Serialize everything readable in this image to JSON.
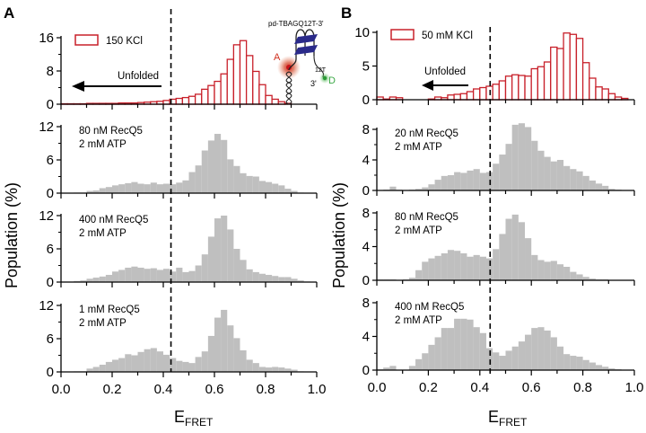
{
  "figure": {
    "panel_a_letter": "A",
    "panel_b_letter": "B",
    "ylabel": "Population (%)",
    "xlabel_main": "E",
    "xlabel_sub": "FRET",
    "unfolded_label": "Unfolded",
    "inset": {
      "construct": "pd-TBAGQ12T-3'",
      "acceptor": "A",
      "donor": "D",
      "linker": "12T",
      "three_prime": "3'"
    },
    "colors": {
      "open_bar": "#c8202a",
      "gray_bar": "#bfbfbf",
      "acceptor": "#d0301f",
      "donor": "#3aa845",
      "quadruplex": "#2a2a8a"
    }
  },
  "chart_data": [
    {
      "panel": "A",
      "type": "bar",
      "style": "open",
      "legend": "150 KCl",
      "annotation": "",
      "ylim": [
        0,
        16
      ],
      "yticks": [
        0,
        8,
        16
      ],
      "yminor": [
        4,
        12
      ],
      "xlim": [
        0,
        1
      ],
      "bin_width": 0.025,
      "threshold": 0.43,
      "values": [
        0.1,
        0.1,
        0.1,
        0.1,
        0.2,
        0.2,
        0.2,
        0.2,
        0.2,
        0.3,
        0.3,
        0.3,
        0.4,
        0.5,
        0.6,
        0.7,
        0.9,
        1.2,
        1.4,
        1.6,
        1.9,
        2.4,
        3.6,
        4.5,
        5.5,
        7.3,
        10.8,
        14.3,
        15.3,
        11.7,
        7.9,
        4.7,
        2.1,
        1.2,
        0.6,
        0.2,
        0,
        0,
        0,
        0
      ]
    },
    {
      "panel": "A",
      "type": "bar",
      "style": "filled",
      "annotation": [
        "80 nM RecQ5",
        "2 mM ATP"
      ],
      "ylim": [
        0,
        12
      ],
      "yticks": [
        0,
        6,
        12
      ],
      "yminor": [
        3,
        9
      ],
      "xlim": [
        0,
        1
      ],
      "bin_width": 0.025,
      "threshold": 0.43,
      "values": [
        0,
        0,
        0.1,
        0.1,
        0.4,
        0.5,
        0.9,
        1.1,
        1.4,
        1.6,
        1.8,
        2.0,
        1.7,
        1.6,
        1.9,
        1.6,
        1.7,
        1.6,
        1.9,
        2.3,
        3.8,
        5.0,
        7.7,
        9.5,
        10.7,
        9.6,
        6.1,
        4.9,
        3.6,
        3.1,
        3.0,
        2.2,
        2.0,
        1.7,
        1.4,
        0.8,
        0.4,
        0.1,
        0,
        0
      ]
    },
    {
      "panel": "A",
      "type": "bar",
      "style": "filled",
      "annotation": [
        "400 nM RecQ5",
        "2 mM ATP"
      ],
      "ylim": [
        0,
        12
      ],
      "yticks": [
        0,
        6,
        12
      ],
      "yminor": [
        3,
        9
      ],
      "xlim": [
        0,
        1
      ],
      "bin_width": 0.025,
      "threshold": 0.43,
      "values": [
        0.1,
        0.1,
        0.2,
        0.3,
        0.6,
        0.8,
        1.0,
        1.3,
        1.9,
        2.2,
        2.6,
        2.8,
        2.6,
        2.4,
        2.5,
        2.2,
        2.4,
        1.9,
        2.6,
        1.8,
        2.0,
        3.0,
        5.0,
        8.2,
        11.5,
        12.0,
        9.5,
        6.0,
        4.0,
        2.3,
        1.8,
        1.5,
        1.3,
        1.1,
        0.9,
        0.9,
        0.6,
        0.3,
        0.1,
        0
      ]
    },
    {
      "panel": "A",
      "type": "bar",
      "style": "filled",
      "annotation": [
        "1 mM RecQ5",
        "2 mM ATP"
      ],
      "ylim": [
        0,
        12
      ],
      "yticks": [
        0,
        6,
        12
      ],
      "yminor": [
        3,
        9
      ],
      "xlim": [
        0,
        1
      ],
      "bin_width": 0.025,
      "threshold": 0.43,
      "xticks": [
        0.0,
        0.2,
        0.4,
        0.6,
        0.8,
        1.0
      ],
      "values": [
        0,
        0,
        0.1,
        0.1,
        0.6,
        0.9,
        1.3,
        1.8,
        2.2,
        2.5,
        3.2,
        3.0,
        3.6,
        4.1,
        4.3,
        3.7,
        3.1,
        2.5,
        2.0,
        1.8,
        1.6,
        2.7,
        3.7,
        6.5,
        9.8,
        11.2,
        8.4,
        6.1,
        3.9,
        2.2,
        1.6,
        0.9,
        0.8,
        0.9,
        0.8,
        0.6,
        0.4,
        0.1,
        0,
        0
      ]
    },
    {
      "panel": "B",
      "type": "bar",
      "style": "open",
      "legend": "50 mM KCl",
      "annotation": "",
      "ylim": [
        0,
        10
      ],
      "yticks": [
        0,
        5,
        10
      ],
      "yminor": [],
      "xlim": [
        0,
        1
      ],
      "bin_width": 0.025,
      "threshold": 0.44,
      "values": [
        0.4,
        0.1,
        0.4,
        0.3,
        0,
        0,
        0,
        0,
        0.1,
        0.4,
        0.3,
        0.7,
        0.8,
        0.9,
        1.2,
        1.6,
        1.8,
        2.0,
        2.3,
        2.8,
        3.5,
        3.7,
        3.6,
        3.5,
        4.6,
        4.9,
        5.6,
        7.8,
        7.6,
        9.9,
        9.7,
        9.1,
        5.5,
        3.2,
        1.9,
        1.6,
        0.9,
        0.4,
        0.2,
        0
      ]
    },
    {
      "panel": "B",
      "type": "bar",
      "style": "filled",
      "annotation": [
        "20 nM RecQ5",
        "2 mM ATP"
      ],
      "ylim": [
        0,
        8
      ],
      "yticks": [
        0,
        4,
        8
      ],
      "yminor": [
        2,
        6
      ],
      "xlim": [
        0,
        1
      ],
      "bin_width": 0.025,
      "threshold": 0.44,
      "values": [
        0,
        0.1,
        0.5,
        0.1,
        0,
        0.1,
        0.2,
        0.4,
        0.8,
        1.4,
        1.9,
        2.0,
        2.4,
        2.3,
        2.6,
        2.8,
        2.3,
        2.4,
        3.5,
        4.7,
        6.1,
        8.6,
        8.8,
        8.3,
        6.5,
        5.2,
        4.4,
        3.8,
        4.0,
        3.2,
        2.8,
        2.5,
        1.9,
        1.3,
        0.9,
        0.6,
        0.2,
        0.1,
        0,
        0
      ]
    },
    {
      "panel": "B",
      "type": "bar",
      "style": "filled",
      "annotation": [
        "80 nM RecQ5",
        "2 mM ATP"
      ],
      "ylim": [
        0,
        8
      ],
      "yticks": [
        0,
        4,
        8
      ],
      "yminor": [
        2,
        6
      ],
      "xlim": [
        0,
        1
      ],
      "bin_width": 0.025,
      "threshold": 0.44,
      "values": [
        0.1,
        0.1,
        0.1,
        0,
        0.1,
        0.3,
        1.2,
        2.2,
        2.6,
        2.9,
        3.2,
        3.6,
        3.5,
        3.2,
        2.8,
        3.0,
        2.8,
        2.6,
        3.7,
        5.5,
        7.3,
        7.8,
        6.9,
        5.0,
        3.0,
        2.4,
        2.2,
        2.3,
        1.9,
        1.6,
        1.0,
        0.7,
        0.4,
        0.2,
        0.1,
        0.1,
        0,
        0,
        0,
        0
      ]
    },
    {
      "panel": "B",
      "type": "bar",
      "style": "filled",
      "annotation": [
        "400 nM RecQ5",
        "2 mM ATP"
      ],
      "ylim": [
        0,
        8
      ],
      "yticks": [
        0,
        4,
        8
      ],
      "yminor": [
        2,
        6
      ],
      "xlim": [
        0,
        1
      ],
      "bin_width": 0.025,
      "threshold": 0.44,
      "xticks": [
        0.0,
        0.2,
        0.4,
        0.6,
        0.8,
        1.0
      ],
      "values": [
        0.1,
        0.3,
        0.5,
        0,
        0,
        0.5,
        1.3,
        2.0,
        3.0,
        3.9,
        5.0,
        5.0,
        6.1,
        6.1,
        6.0,
        5.1,
        4.4,
        2.6,
        2.1,
        1.7,
        2.3,
        2.8,
        3.4,
        4.2,
        5.0,
        5.1,
        4.7,
        3.9,
        2.8,
        1.9,
        1.7,
        1.6,
        1.2,
        0.9,
        0.6,
        0.4,
        0.2,
        0.1,
        0,
        0
      ]
    }
  ]
}
